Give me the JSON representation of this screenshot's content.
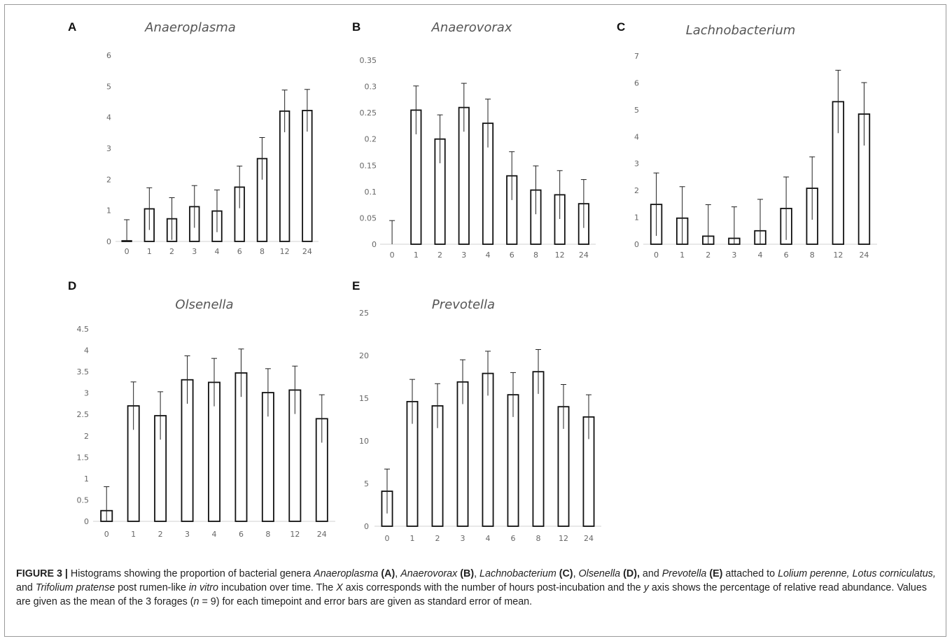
{
  "figure": {
    "caption": {
      "label": "FIGURE 3 |",
      "parts": [
        {
          "t": " Histograms showing the proportion of bacterial genera ",
          "s": ""
        },
        {
          "t": "Anaeroplasma",
          "s": "i"
        },
        {
          "t": " ",
          "s": ""
        },
        {
          "t": "(A)",
          "s": "b"
        },
        {
          "t": ", ",
          "s": ""
        },
        {
          "t": "Anaerovorax",
          "s": "i"
        },
        {
          "t": " ",
          "s": ""
        },
        {
          "t": "(B)",
          "s": "b"
        },
        {
          "t": ", ",
          "s": ""
        },
        {
          "t": "Lachnobacterium",
          "s": "i"
        },
        {
          "t": " ",
          "s": ""
        },
        {
          "t": "(C)",
          "s": "b"
        },
        {
          "t": ", ",
          "s": ""
        },
        {
          "t": "Olsenella",
          "s": "i"
        },
        {
          "t": " ",
          "s": ""
        },
        {
          "t": "(D),",
          "s": "b"
        },
        {
          "t": " and ",
          "s": ""
        },
        {
          "t": "Prevotella",
          "s": "i"
        },
        {
          "t": " ",
          "s": ""
        },
        {
          "t": "(E)",
          "s": "b"
        },
        {
          "t": " attached to ",
          "s": ""
        },
        {
          "t": "Lolium perenne, Lotus corniculatus,",
          "s": "i"
        },
        {
          "t": " and ",
          "s": ""
        },
        {
          "t": "Trifolium pratense",
          "s": "i"
        },
        {
          "t": " post rumen-like ",
          "s": ""
        },
        {
          "t": "in vitro",
          "s": "i"
        },
        {
          "t": " incubation over time. The ",
          "s": ""
        },
        {
          "t": "X",
          "s": "i"
        },
        {
          "t": " axis corresponds with the number of hours post-incubation and the ",
          "s": ""
        },
        {
          "t": "y",
          "s": "i"
        },
        {
          "t": " axis shows the percentage of relative read abundance. Values are given as the mean of the 3 forages (",
          "s": ""
        },
        {
          "t": "n",
          "s": "i"
        },
        {
          "t": " = 9) for each timepoint and error bars are given as standard error of mean.",
          "s": ""
        }
      ]
    }
  },
  "chart_data": [
    {
      "panel": "A",
      "type": "bar",
      "title": "Anaeroplasma",
      "categories": [
        "0",
        "1",
        "2",
        "3",
        "4",
        "6",
        "8",
        "12",
        "24"
      ],
      "values": [
        0.02,
        1.05,
        0.73,
        1.12,
        0.98,
        1.75,
        2.67,
        4.2,
        4.22
      ],
      "errors": [
        0.68,
        0.68,
        0.68,
        0.68,
        0.68,
        0.68,
        0.68,
        0.68,
        0.68
      ],
      "ylim": [
        0,
        6
      ],
      "yticks": [
        "0",
        "1",
        "2",
        "3",
        "4",
        "5",
        "6"
      ],
      "xlabel": "",
      "ylabel": ""
    },
    {
      "panel": "B",
      "type": "bar",
      "title": "Anaerovorax",
      "categories": [
        "0",
        "1",
        "2",
        "3",
        "4",
        "6",
        "8",
        "12",
        "24"
      ],
      "values": [
        0.0,
        0.255,
        0.2,
        0.26,
        0.23,
        0.13,
        0.103,
        0.094,
        0.077
      ],
      "errors": [
        0.045,
        0.046,
        0.046,
        0.046,
        0.046,
        0.046,
        0.046,
        0.046,
        0.046
      ],
      "ylim": [
        0,
        0.35
      ],
      "yticks": [
        "0",
        "0.05",
        "0.1",
        "0.15",
        "0.2",
        "0.25",
        "0.3",
        "0.35"
      ],
      "xlabel": "",
      "ylabel": ""
    },
    {
      "panel": "C",
      "type": "bar",
      "title": "Lachnobacterium",
      "categories": [
        "0",
        "1",
        "2",
        "3",
        "4",
        "6",
        "8",
        "12",
        "24"
      ],
      "values": [
        1.48,
        0.97,
        0.3,
        0.22,
        0.5,
        1.33,
        2.08,
        5.3,
        4.84
      ],
      "errors": [
        1.17,
        1.17,
        1.17,
        1.17,
        1.17,
        1.17,
        1.17,
        1.17,
        1.17
      ],
      "ylim": [
        0,
        7
      ],
      "yticks": [
        "0",
        "1",
        "2",
        "3",
        "4",
        "5",
        "6",
        "7"
      ],
      "xlabel": "",
      "ylabel": ""
    },
    {
      "panel": "D",
      "type": "bar",
      "title": "Olsenella",
      "categories": [
        "0",
        "1",
        "2",
        "3",
        "4",
        "6",
        "8",
        "12",
        "24"
      ],
      "values": [
        0.25,
        2.7,
        2.47,
        3.31,
        3.25,
        3.47,
        3.01,
        3.07,
        2.4
      ],
      "errors": [
        0.56,
        0.56,
        0.56,
        0.56,
        0.56,
        0.56,
        0.56,
        0.56,
        0.56
      ],
      "ylim": [
        0,
        4.5
      ],
      "yticks": [
        "0",
        "0.5",
        "1",
        "1.5",
        "2",
        "2.5",
        "3",
        "3.5",
        "4",
        "4.5"
      ],
      "xlabel": "",
      "ylabel": ""
    },
    {
      "panel": "E",
      "type": "bar",
      "title": "Prevotella",
      "categories": [
        "0",
        "1",
        "2",
        "3",
        "4",
        "6",
        "8",
        "12",
        "24"
      ],
      "values": [
        4.1,
        14.6,
        14.1,
        16.9,
        17.9,
        15.4,
        18.1,
        14.0,
        12.8
      ],
      "errors": [
        2.6,
        2.6,
        2.6,
        2.6,
        2.6,
        2.6,
        2.6,
        2.6,
        2.6
      ],
      "ylim": [
        0,
        25
      ],
      "yticks": [
        "0",
        "5",
        "10",
        "15",
        "20",
        "25"
      ],
      "xlabel": "",
      "ylabel": ""
    }
  ]
}
